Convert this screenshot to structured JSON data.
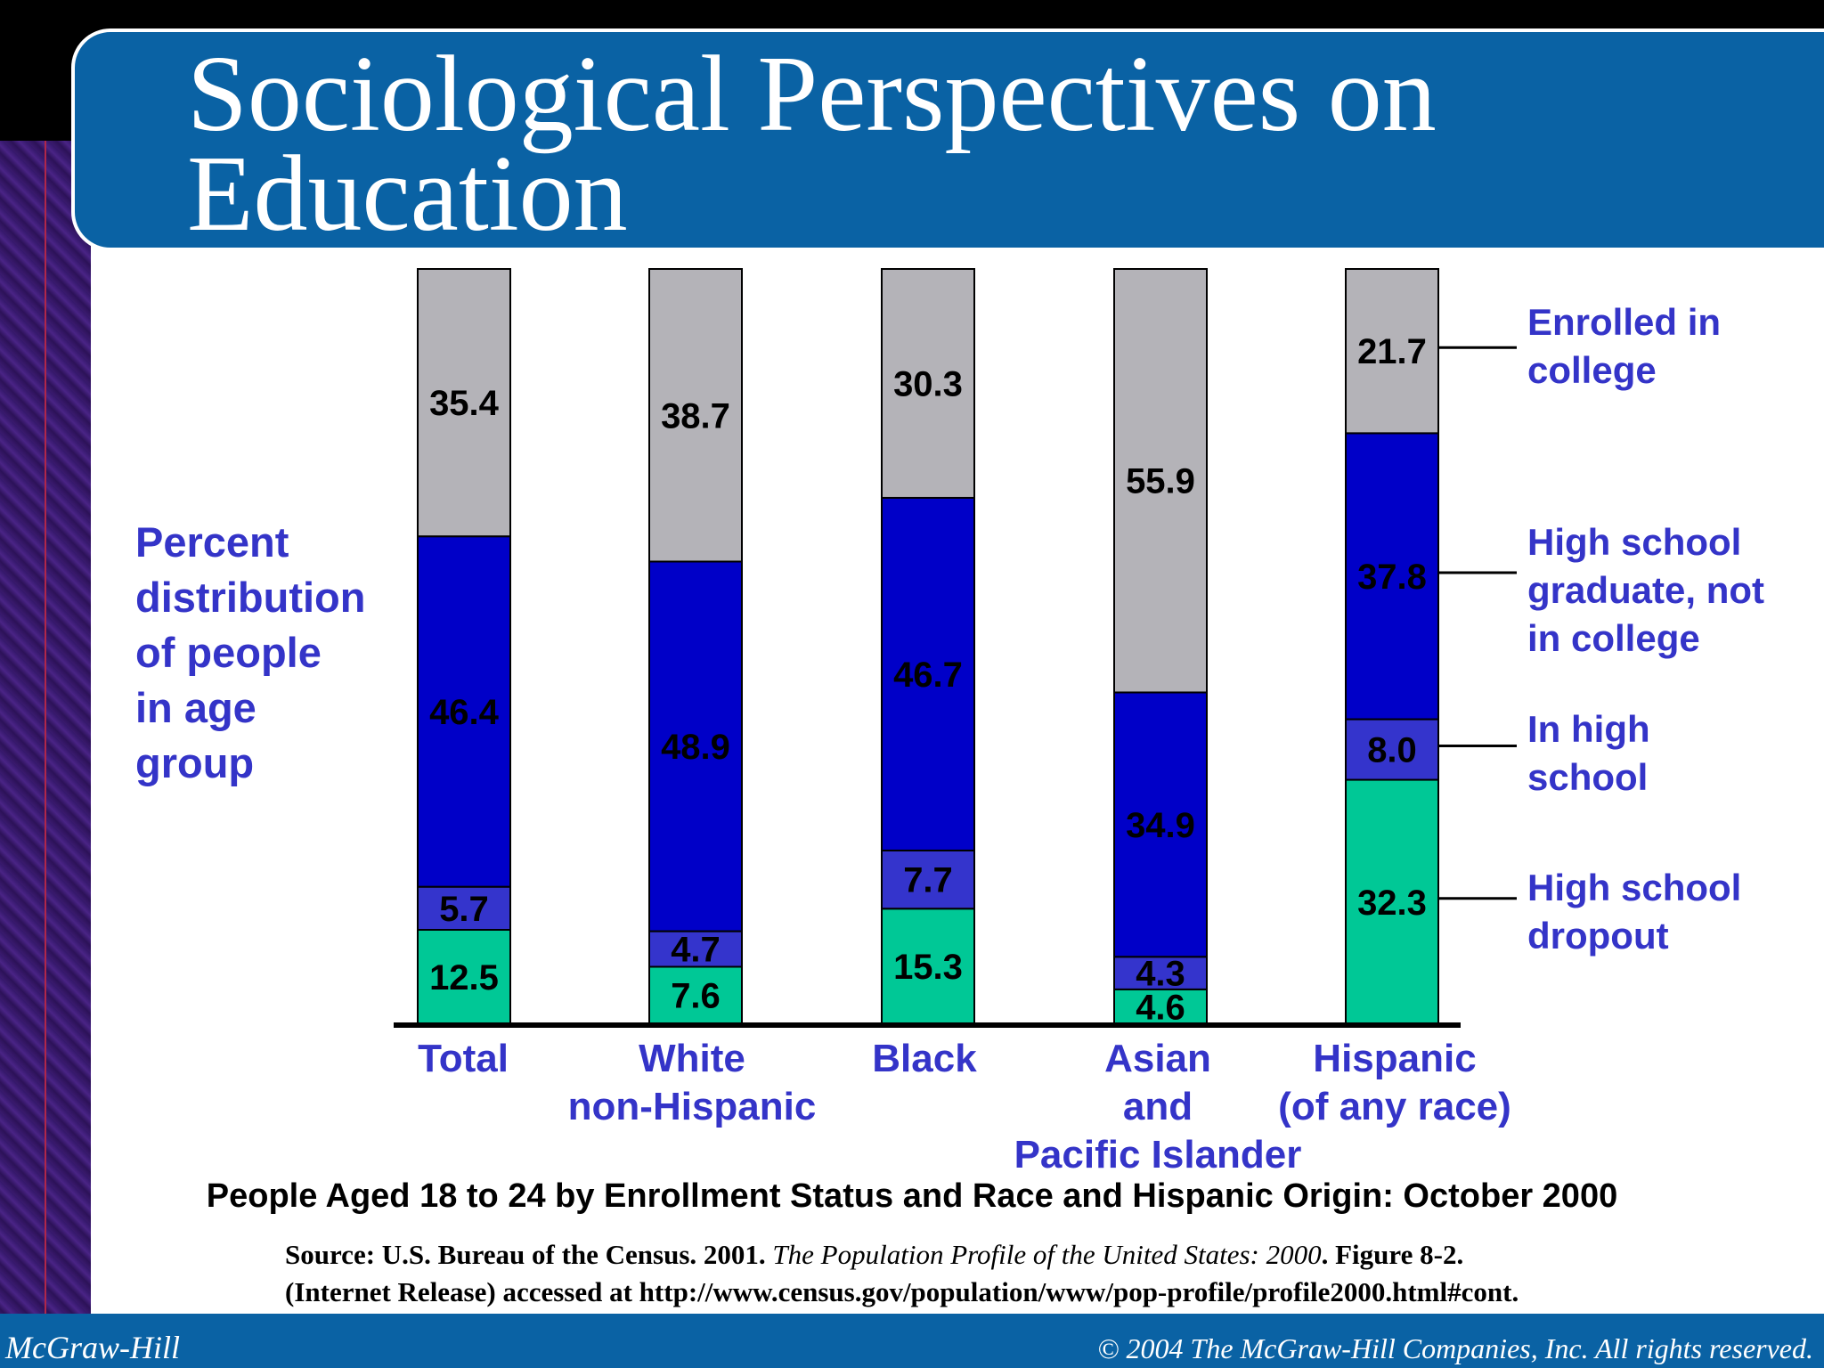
{
  "slide": {
    "title_line1": "Sociological Perspectives on",
    "title_line2": "Education",
    "footer_left": "McGraw-Hill",
    "footer_right": "© 2004 The McGraw-Hill Companies, Inc. All rights reserved."
  },
  "chart_data": {
    "type": "bar",
    "stacked": true,
    "title": "People Aged 18 to 24 by Enrollment Status and Race and Hispanic Origin: October 2000",
    "ylabel": "Percent distribution of people in age group",
    "ylabel_lines": [
      "Percent",
      "distribution",
      "of people",
      "in age",
      "group"
    ],
    "categories": [
      "Total",
      "White non-Hispanic",
      "Black",
      "Asian and Pacific Islander",
      "Hispanic (of any race)"
    ],
    "category_lines": [
      [
        "Total"
      ],
      [
        "White",
        "non-Hispanic"
      ],
      [
        "Black"
      ],
      [
        "Asian",
        "and",
        "Pacific Islander"
      ],
      [
        "Hispanic",
        "(of any race)"
      ]
    ],
    "series": [
      {
        "name": "High school dropout",
        "name_lines": [
          "High school",
          "dropout"
        ],
        "color": "#00c896",
        "values": [
          12.5,
          7.6,
          15.3,
          4.6,
          32.3
        ],
        "labels": [
          "12.5",
          "7.6",
          "15.3",
          "4.6",
          "32.3"
        ]
      },
      {
        "name": "In high school",
        "name_lines": [
          "In high",
          "school"
        ],
        "color": "#3434cc",
        "values": [
          5.7,
          4.7,
          7.7,
          4.3,
          8.0
        ],
        "labels": [
          "5.7",
          "4.7",
          "7.7",
          "4.3",
          "8.0"
        ]
      },
      {
        "name": "High school graduate, not in college",
        "name_lines": [
          "High school",
          "graduate, not",
          "in college"
        ],
        "color": "#0000c8",
        "values": [
          46.4,
          48.9,
          46.7,
          34.9,
          37.8
        ],
        "labels": [
          "46.4",
          "48.9",
          "46.7",
          "34.9",
          "37.8"
        ]
      },
      {
        "name": "Enrolled in college",
        "name_lines": [
          "Enrolled in",
          "college"
        ],
        "color": "#b4b3b8",
        "values": [
          35.4,
          38.7,
          30.3,
          55.9,
          21.7
        ],
        "labels": [
          "35.4",
          "38.7",
          "30.3",
          "55.9",
          "21.7"
        ]
      }
    ],
    "ylim": [
      0,
      100
    ],
    "grid": false,
    "legend": "right"
  },
  "source": {
    "prefix": "Source: U.S. Bureau of the Census. 2001. ",
    "italic": "The Population Profile of the United States: 2000",
    "suffix": ". Figure 8-2.",
    "line2": "(Internet Release) accessed at http://www.census.gov/population/www/pop-profile/profile2000.html#cont."
  }
}
